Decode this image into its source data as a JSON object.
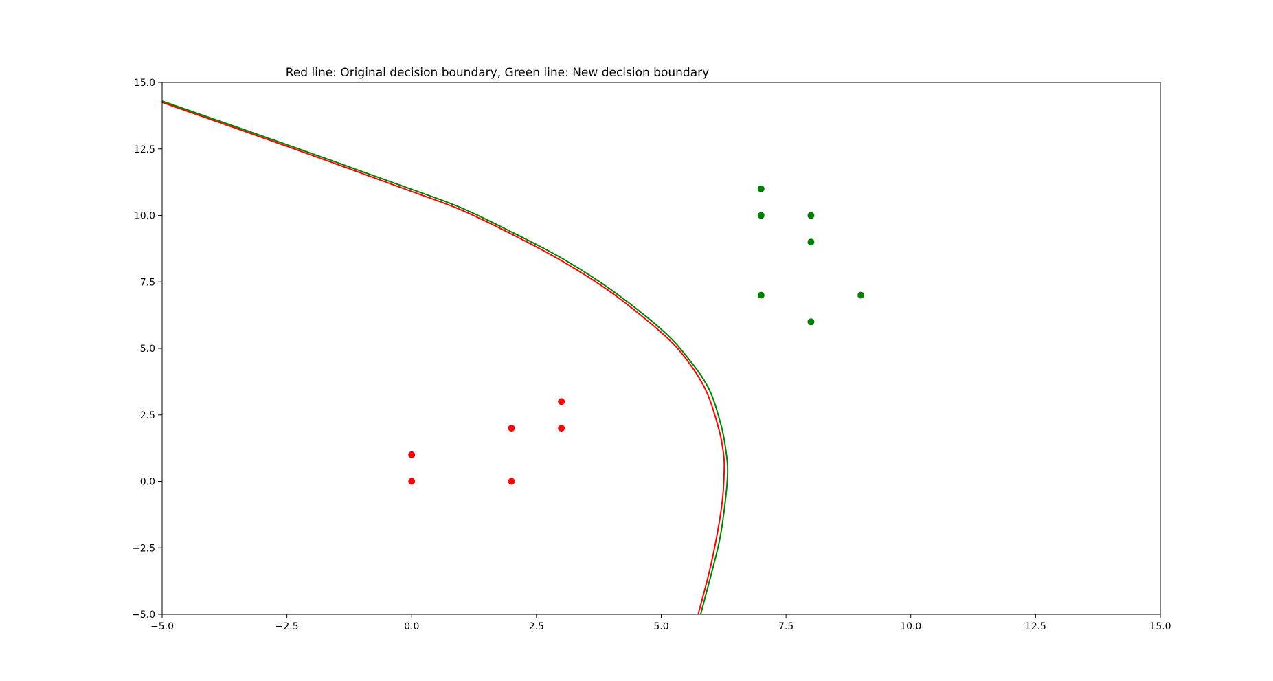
{
  "chart_data": {
    "type": "scatter",
    "title": "Red line: Original decision boundary, Green line: New decision boundary",
    "xlabel": "",
    "ylabel": "",
    "xlim": [
      -5,
      15
    ],
    "ylim": [
      -5,
      15
    ],
    "grid": false,
    "xticks": [
      -5,
      -2.5,
      0,
      2.5,
      5,
      7.5,
      10,
      12.5,
      15
    ],
    "xtick_labels": [
      "−5.0",
      "−2.5",
      "0.0",
      "2.5",
      "5.0",
      "7.5",
      "10.0",
      "12.5",
      "15.0"
    ],
    "yticks": [
      -5,
      -2.5,
      0,
      2.5,
      5,
      7.5,
      10,
      12.5,
      15
    ],
    "ytick_labels": [
      "−5.0",
      "−2.5",
      "0.0",
      "2.5",
      "5.0",
      "7.5",
      "10.0",
      "12.5",
      "15.0"
    ],
    "series": [
      {
        "color": "#ff0000",
        "points": [
          [
            0,
            0
          ],
          [
            0,
            1
          ],
          [
            2,
            0
          ],
          [
            2,
            2
          ],
          [
            3,
            2
          ],
          [
            3,
            3
          ]
        ]
      },
      {
        "color": "#008000",
        "points": [
          [
            7,
            11
          ],
          [
            7,
            10
          ],
          [
            8,
            10
          ],
          [
            8,
            9
          ],
          [
            7,
            7
          ],
          [
            9,
            7
          ],
          [
            8,
            6
          ]
        ]
      }
    ],
    "boundaries": [
      {
        "color": "#ff0000",
        "points": [
          [
            -5,
            14.25
          ],
          [
            -2.5,
            12.6
          ],
          [
            0,
            10.9
          ],
          [
            1,
            10.2
          ],
          [
            2,
            9.3
          ],
          [
            3,
            8.3
          ],
          [
            4,
            7.1
          ],
          [
            5,
            5.6
          ],
          [
            5.5,
            4.6
          ],
          [
            5.9,
            3.4
          ],
          [
            6.15,
            2.0
          ],
          [
            6.25,
            1.0
          ],
          [
            6.26,
            0.3
          ],
          [
            6.22,
            -0.8
          ],
          [
            6.1,
            -2.2
          ],
          [
            5.95,
            -3.5
          ],
          [
            5.74,
            -5
          ]
        ]
      },
      {
        "color": "#008000",
        "points": [
          [
            -5,
            14.3
          ],
          [
            -2.5,
            12.66
          ],
          [
            0,
            10.98
          ],
          [
            1,
            10.28
          ],
          [
            2,
            9.38
          ],
          [
            3,
            8.4
          ],
          [
            4,
            7.2
          ],
          [
            5,
            5.72
          ],
          [
            5.5,
            4.72
          ],
          [
            5.95,
            3.5
          ],
          [
            6.2,
            2.1
          ],
          [
            6.3,
            1.1
          ],
          [
            6.33,
            0.3
          ],
          [
            6.28,
            -0.8
          ],
          [
            6.17,
            -2.2
          ],
          [
            6.0,
            -3.5
          ],
          [
            5.79,
            -5
          ]
        ]
      }
    ]
  }
}
